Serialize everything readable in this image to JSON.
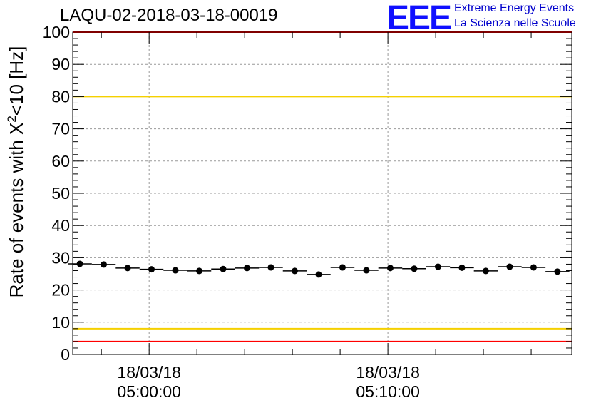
{
  "title": "LAQU-02-2018-03-18-00019",
  "logo": {
    "mark": "EEE",
    "line1": "Extreme Energy Events",
    "line2": "La Scienza nelle Scuole"
  },
  "colors": {
    "red_line": "#ff0000",
    "yellow_line": "#f5d000",
    "marker": "#000000",
    "grid": "#999999",
    "logo_blue": "#1010ff"
  },
  "chart_data": {
    "type": "scatter",
    "title": "LAQU-02-2018-03-18-00019",
    "ylabel": "Rate of events with X²<10 [Hz]",
    "ylabel_parts": {
      "prefix": "Rate of events with X",
      "sup": "2",
      "suffix": "<10 [Hz]"
    },
    "xlabel": "",
    "ylim": [
      0,
      100
    ],
    "yticks": [
      0,
      10,
      20,
      30,
      40,
      50,
      60,
      70,
      80,
      90,
      100
    ],
    "ytick_labels": [
      "0",
      "10",
      "20",
      "30",
      "40",
      "50",
      "60",
      "70",
      "80",
      "90",
      "100"
    ],
    "xlim_minutes": [
      -3.2,
      17.7
    ],
    "xticks": [
      {
        "minutes": 0,
        "date": "18/03/18",
        "time": "05:00:00"
      },
      {
        "minutes": 10,
        "date": "18/03/18",
        "time": "05:10:00"
      }
    ],
    "grid": true,
    "bin_width_minutes": 1,
    "x_minutes": [
      -2.9,
      -1.9,
      -0.9,
      0.1,
      1.1,
      2.1,
      3.1,
      4.1,
      5.1,
      6.1,
      7.1,
      8.1,
      9.1,
      10.1,
      11.1,
      12.1,
      13.1,
      14.1,
      15.1,
      16.1,
      17.1
    ],
    "values": [
      28.1,
      27.9,
      26.8,
      26.4,
      26.1,
      25.9,
      26.5,
      26.8,
      27.0,
      25.9,
      24.8,
      27.0,
      26.1,
      26.8,
      26.6,
      27.2,
      26.9,
      25.9,
      27.2,
      27.0,
      25.7
    ],
    "reference_lines": [
      {
        "name": "upper-red-limit",
        "value": 100,
        "color": "red"
      },
      {
        "name": "upper-yellow-limit",
        "value": 80,
        "color": "yellow"
      },
      {
        "name": "lower-yellow-limit",
        "value": 8,
        "color": "yellow"
      },
      {
        "name": "lower-red-limit",
        "value": 4,
        "color": "red"
      }
    ]
  }
}
